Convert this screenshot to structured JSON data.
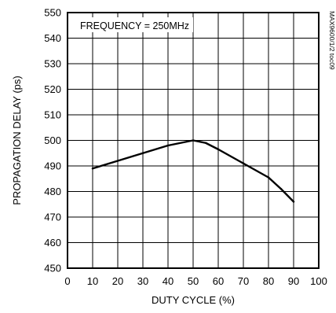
{
  "chart_data": {
    "type": "line",
    "title": "",
    "xlabel": "DUTY CYCLE (%)",
    "ylabel": "PROPAGATION DELAY (ps)",
    "xlim": [
      0,
      100
    ],
    "ylim": [
      450,
      550
    ],
    "xticks": [
      0,
      10,
      20,
      30,
      40,
      50,
      60,
      70,
      80,
      90,
      100
    ],
    "yticks": [
      450,
      460,
      470,
      480,
      490,
      500,
      510,
      520,
      530,
      540,
      550
    ],
    "grid": true,
    "annotation": "FREQUENCY = 250MHz",
    "side_label": "MAX9600/1/2 toc09",
    "series": [
      {
        "color": "#000000",
        "x": [
          10,
          20,
          30,
          40,
          50,
          55,
          60,
          70,
          80,
          85,
          90
        ],
        "y": [
          489,
          492,
          495,
          498,
          500,
          499,
          496.5,
          491,
          485.5,
          481,
          476
        ]
      }
    ]
  }
}
